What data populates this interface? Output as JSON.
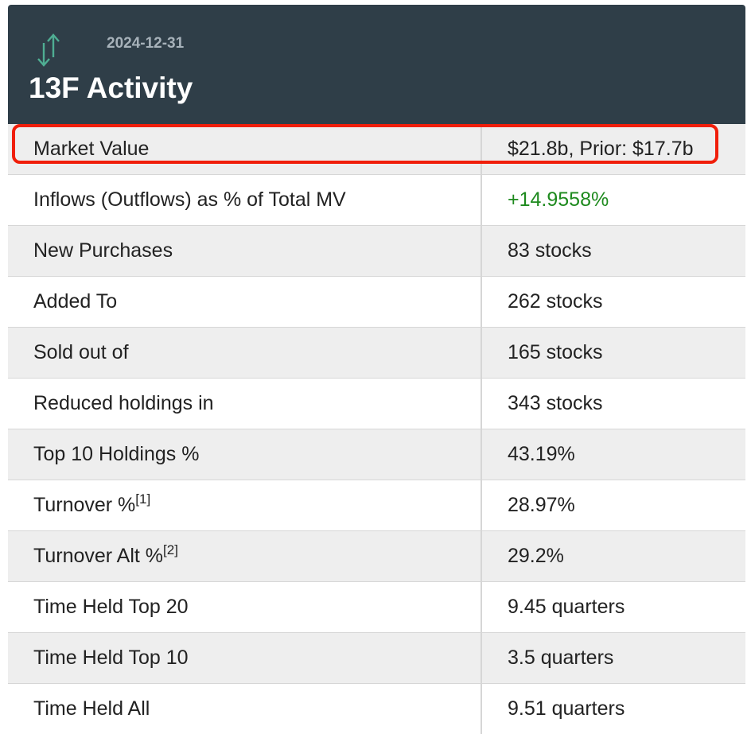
{
  "header": {
    "date": "2024-12-31",
    "title": "13F Activity",
    "icon": "up-down-arrows-icon"
  },
  "rows": [
    {
      "label": "Market Value",
      "sup": "",
      "value": "$21.8b, Prior: $17.7b"
    },
    {
      "label": "Inflows (Outflows) as % of Total MV",
      "sup": "",
      "value": "+14.9558%"
    },
    {
      "label": "New Purchases",
      "sup": "",
      "value": "83 stocks"
    },
    {
      "label": "Added To",
      "sup": "",
      "value": "262 stocks"
    },
    {
      "label": "Sold out of",
      "sup": "",
      "value": "165 stocks"
    },
    {
      "label": "Reduced holdings in",
      "sup": "",
      "value": "343 stocks"
    },
    {
      "label": "Top 10 Holdings %",
      "sup": "",
      "value": "43.19%"
    },
    {
      "label": "Turnover %",
      "sup": "[1]",
      "value": "28.97%"
    },
    {
      "label": "Turnover Alt %",
      "sup": "[2]",
      "value": "29.2%"
    },
    {
      "label": "Time Held Top 20",
      "sup": "",
      "value": "9.45 quarters"
    },
    {
      "label": "Time Held Top 10",
      "sup": "",
      "value": "3.5 quarters"
    },
    {
      "label": "Time Held All",
      "sup": "",
      "value": "9.51 quarters"
    }
  ],
  "colors": {
    "header_bg": "#2f3e48",
    "positive": "#1e8a1e",
    "highlight": "#f01e0a",
    "icon": "#4fae93"
  }
}
